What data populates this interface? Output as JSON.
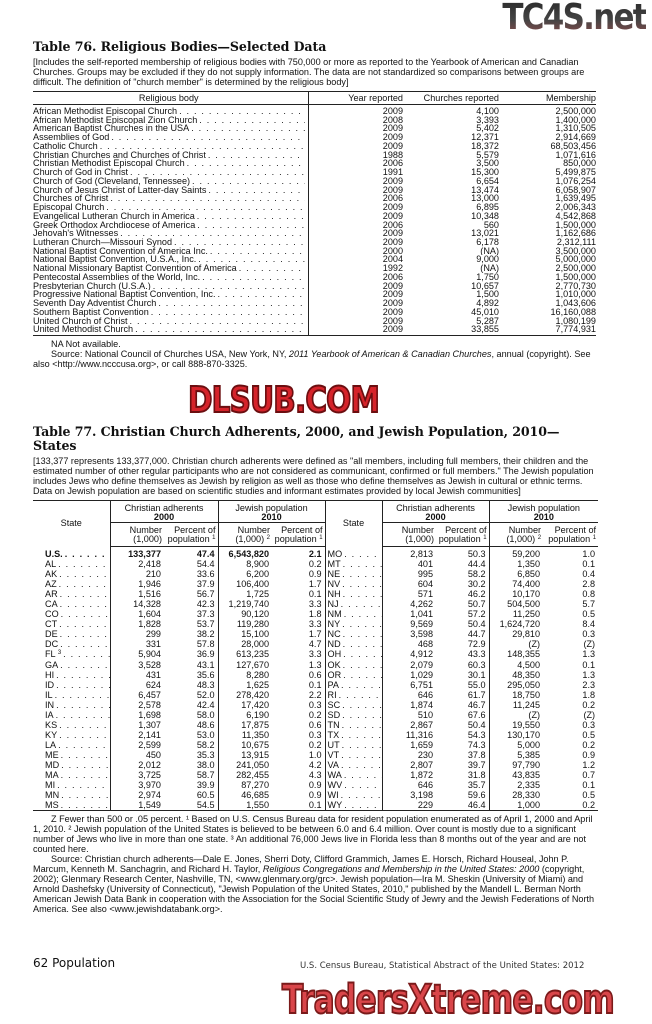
{
  "watermarks": {
    "top": "TC4S.net",
    "middle": "DLSUB.COM",
    "bottom": "TradersXtreme.com"
  },
  "table76": {
    "title": "Table 76. Religious Bodies—Selected Data",
    "note": "[Includes the self-reported membership of religious bodies with 750,000 or more as reported to the Yearbook of American and Canadian Churches. Groups may be excluded if they do not supply information. The data are not standardized so comparisons between groups are difficult. The definition of \"church member\" is determined by the religious body]",
    "headers": {
      "body": "Religious body",
      "year": "Year reported",
      "churches": "Churches reported",
      "membership": "Membership"
    },
    "rows": [
      [
        "African Methodist Episcopal Church",
        "2009",
        "4,100",
        "2,500,000"
      ],
      [
        "African Methodist Episcopal Zion Church",
        "2008",
        "3,393",
        "1,400,000"
      ],
      [
        "American Baptist Churches in the USA",
        "2009",
        "5,402",
        "1,310,505"
      ],
      [
        "Assemblies of God",
        "2009",
        "12,371",
        "2,914,669"
      ],
      [
        "Catholic Church",
        "2009",
        "18,372",
        "68,503,456"
      ],
      [
        "Christian Churches and Churches of Christ",
        "1988",
        "5,579",
        "1,071,616"
      ],
      [
        "Christian Methodist Episcopal Church",
        "2006",
        "3,500",
        "850,000"
      ],
      [
        "Church of God in Christ",
        "1991",
        "15,300",
        "5,499,875"
      ],
      [
        "Church of God (Cleveland, Tennessee)",
        "2009",
        "6,654",
        "1,076,254"
      ],
      [
        "Church of Jesus Christ of Latter-day Saints",
        "2009",
        "13,474",
        "6,058,907"
      ],
      [
        "Churches of Christ",
        "2006",
        "13,000",
        "1,639,495"
      ],
      [
        "Episcopal Church",
        "2009",
        "6,895",
        "2,006,343"
      ],
      [
        "Evangelical Lutheran Church in America",
        "2009",
        "10,348",
        "4,542,868"
      ],
      [
        "Greek Orthodox Archdiocese of America",
        "2006",
        "560",
        "1,500,000"
      ],
      [
        "Jehovah's Witnesses",
        "2009",
        "13,021",
        "1,162,686"
      ],
      [
        "Lutheran Church—Missouri Synod",
        "2009",
        "6,178",
        "2,312,111"
      ],
      [
        "National Baptist Convention of America Inc.",
        "2000",
        "(NA)",
        "3,500,000"
      ],
      [
        "National Baptist Convention, U.S.A., Inc.",
        "2004",
        "9,000",
        "5,000,000"
      ],
      [
        "National Missionary Baptist Convention of America",
        "1992",
        "(NA)",
        "2,500,000"
      ],
      [
        "Pentecostal Assemblies of the World, Inc.",
        "2006",
        "1,750",
        "1,500,000"
      ],
      [
        "Presbyterian Church (U.S.A.)",
        "2009",
        "10,657",
        "2,770,730"
      ],
      [
        "Progressive National Baptist Convention, Inc.",
        "2009",
        "1,500",
        "1,010,000"
      ],
      [
        "Seventh Day Adventist Church",
        "2009",
        "4,892",
        "1,043,606"
      ],
      [
        "Southern Baptist Convention",
        "2009",
        "45,010",
        "16,160,088"
      ],
      [
        "United Church of Christ",
        "2009",
        "5,287",
        "1,080,199"
      ],
      [
        "United Methodist Church",
        "2009",
        "33,855",
        "7,774,931"
      ]
    ],
    "footnote_na": "NA Not available.",
    "source": [
      {
        "t": "Source: National Council of Churches USA, New York, NY, "
      },
      {
        "t": "2011 Yearbook of American & Canadian Churches",
        "i": true
      },
      {
        "t": ", annual (copyright). See also <http://www.ncccusa.org>, or call 888-870-3325."
      }
    ]
  },
  "table77": {
    "title": "Table 77. Christian Church Adherents, 2000, and Jewish Population, 2010—States",
    "note": "[133,377 represents 133,377,000. Christian church adherents were defined as \"all members, including full members, their children and the estimated number of other regular participants who are not considered as communicant, confirmed or full members.\" The Jewish population includes Jews who define themselves as Jewish by religion as well as those who define themselves as Jewish in cultural or ethnic terms. Data on Jewish population are based on scientific studies and informant estimates provided by local Jewish communities]",
    "headers": {
      "state": "State",
      "christian": "Christian adherents",
      "christian_year": "2000",
      "jewish": "Jewish population",
      "jewish_year": "2010",
      "number": "Number",
      "unit": "(1,000)",
      "jewish_unit_sup": "2",
      "percent": "Percent of",
      "population": "population",
      "percent_sup": "1"
    },
    "rows": [
      {
        "l": {
          "s": "U.S.",
          "n1": "133,377",
          "p1": "47.4",
          "n2": "6,543,820",
          "p2": "2.1"
        },
        "r": {
          "s": "MO",
          "n1": "2,813",
          "p1": "50.3",
          "n2": "59,200",
          "p2": "1.0"
        }
      },
      {
        "l": {
          "s": "AL",
          "n1": "2,418",
          "p1": "54.4",
          "n2": "8,900",
          "p2": "0.2"
        },
        "r": {
          "s": "MT",
          "n1": "401",
          "p1": "44.4",
          "n2": "1,350",
          "p2": "0.1"
        }
      },
      {
        "l": {
          "s": "AK",
          "n1": "210",
          "p1": "33.6",
          "n2": "6,200",
          "p2": "0.9"
        },
        "r": {
          "s": "NE",
          "n1": "995",
          "p1": "58.2",
          "n2": "6,850",
          "p2": "0.4"
        }
      },
      {
        "l": {
          "s": "AZ",
          "n1": "1,946",
          "p1": "37.9",
          "n2": "106,400",
          "p2": "1.7"
        },
        "r": {
          "s": "NV",
          "n1": "604",
          "p1": "30.2",
          "n2": "74,400",
          "p2": "2.8"
        }
      },
      {
        "l": {
          "s": "AR",
          "n1": "1,516",
          "p1": "56.7",
          "n2": "1,725",
          "p2": "0.1"
        },
        "r": {
          "s": "NH",
          "n1": "571",
          "p1": "46.2",
          "n2": "10,170",
          "p2": "0.8"
        }
      },
      {
        "l": {
          "s": "CA",
          "n1": "14,328",
          "p1": "42.3",
          "n2": "1,219,740",
          "p2": "3.3"
        },
        "r": {
          "s": "NJ",
          "n1": "4,262",
          "p1": "50.7",
          "n2": "504,500",
          "p2": "5.7"
        }
      },
      {
        "l": {
          "s": "CO",
          "n1": "1,604",
          "p1": "37.3",
          "n2": "90,120",
          "p2": "1.8"
        },
        "r": {
          "s": "NM",
          "n1": "1,041",
          "p1": "57.2",
          "n2": "11,250",
          "p2": "0.5"
        }
      },
      {
        "l": {
          "s": "CT",
          "n1": "1,828",
          "p1": "53.7",
          "n2": "119,280",
          "p2": "3.3"
        },
        "r": {
          "s": "NY",
          "n1": "9,569",
          "p1": "50.4",
          "n2": "1,624,720",
          "p2": "8.4"
        }
      },
      {
        "l": {
          "s": "DE",
          "n1": "299",
          "p1": "38.2",
          "n2": "15,100",
          "p2": "1.7"
        },
        "r": {
          "s": "NC",
          "n1": "3,598",
          "p1": "44.7",
          "n2": "29,810",
          "p2": "0.3"
        }
      },
      {
        "l": {
          "s": "DC",
          "n1": "331",
          "p1": "57.8",
          "n2": "28,000",
          "p2": "4.7"
        },
        "r": {
          "s": "ND",
          "n1": "468",
          "p1": "72.9",
          "n2": "(Z)",
          "p2": "(Z)"
        }
      },
      {
        "l": {
          "s": "FL",
          "sup": "3",
          "n1": "5,904",
          "p1": "36.9",
          "n2": "613,235",
          "p2": "3.3"
        },
        "r": {
          "s": "OH",
          "n1": "4,912",
          "p1": "43.3",
          "n2": "148,355",
          "p2": "1.3"
        }
      },
      {
        "l": {
          "s": "GA",
          "n1": "3,528",
          "p1": "43.1",
          "n2": "127,670",
          "p2": "1.3"
        },
        "r": {
          "s": "OK",
          "n1": "2,079",
          "p1": "60.3",
          "n2": "4,500",
          "p2": "0.1"
        }
      },
      {
        "l": {
          "s": "HI",
          "n1": "431",
          "p1": "35.6",
          "n2": "8,280",
          "p2": "0.6"
        },
        "r": {
          "s": "OR",
          "n1": "1,029",
          "p1": "30.1",
          "n2": "48,350",
          "p2": "1.3"
        }
      },
      {
        "l": {
          "s": "ID",
          "n1": "624",
          "p1": "48.3",
          "n2": "1,625",
          "p2": "0.1"
        },
        "r": {
          "s": "PA",
          "n1": "6,751",
          "p1": "55.0",
          "n2": "295,050",
          "p2": "2.3"
        }
      },
      {
        "l": {
          "s": "IL",
          "n1": "6,457",
          "p1": "52.0",
          "n2": "278,420",
          "p2": "2.2"
        },
        "r": {
          "s": "RI",
          "n1": "646",
          "p1": "61.7",
          "n2": "18,750",
          "p2": "1.8"
        }
      },
      {
        "l": {
          "s": "IN",
          "n1": "2,578",
          "p1": "42.4",
          "n2": "17,420",
          "p2": "0.3"
        },
        "r": {
          "s": "SC",
          "n1": "1,874",
          "p1": "46.7",
          "n2": "11,245",
          "p2": "0.2"
        }
      },
      {
        "l": {
          "s": "IA",
          "n1": "1,698",
          "p1": "58.0",
          "n2": "6,190",
          "p2": "0.2"
        },
        "r": {
          "s": "SD",
          "n1": "510",
          "p1": "67.6",
          "n2": "(Z)",
          "p2": "(Z)"
        }
      },
      {
        "l": {
          "s": "KS",
          "n1": "1,307",
          "p1": "48.6",
          "n2": "17,875",
          "p2": "0.6"
        },
        "r": {
          "s": "TN",
          "n1": "2,867",
          "p1": "50.4",
          "n2": "19,550",
          "p2": "0.3"
        }
      },
      {
        "l": {
          "s": "KY",
          "n1": "2,141",
          "p1": "53.0",
          "n2": "11,350",
          "p2": "0.3"
        },
        "r": {
          "s": "TX",
          "n1": "11,316",
          "p1": "54.3",
          "n2": "130,170",
          "p2": "0.5"
        }
      },
      {
        "l": {
          "s": "LA",
          "n1": "2,599",
          "p1": "58.2",
          "n2": "10,675",
          "p2": "0.2"
        },
        "r": {
          "s": "UT",
          "n1": "1,659",
          "p1": "74.3",
          "n2": "5,000",
          "p2": "0.2"
        }
      },
      {
        "l": {
          "s": "ME",
          "n1": "450",
          "p1": "35.3",
          "n2": "13,915",
          "p2": "1.0"
        },
        "r": {
          "s": "VT",
          "n1": "230",
          "p1": "37.8",
          "n2": "5,385",
          "p2": "0.9"
        }
      },
      {
        "l": {
          "s": "MD",
          "n1": "2,012",
          "p1": "38.0",
          "n2": "241,050",
          "p2": "4.2"
        },
        "r": {
          "s": "VA",
          "n1": "2,807",
          "p1": "39.7",
          "n2": "97,790",
          "p2": "1.2"
        }
      },
      {
        "l": {
          "s": "MA",
          "n1": "3,725",
          "p1": "58.7",
          "n2": "282,455",
          "p2": "4.3"
        },
        "r": {
          "s": "WA",
          "n1": "1,872",
          "p1": "31.8",
          "n2": "43,835",
          "p2": "0.7"
        }
      },
      {
        "l": {
          "s": "MI",
          "n1": "3,970",
          "p1": "39.9",
          "n2": "87,270",
          "p2": "0.9"
        },
        "r": {
          "s": "WV",
          "n1": "646",
          "p1": "35.7",
          "n2": "2,335",
          "p2": "0.1"
        }
      },
      {
        "l": {
          "s": "MN",
          "n1": "2,974",
          "p1": "60.5",
          "n2": "46,685",
          "p2": "0.9"
        },
        "r": {
          "s": "WI",
          "n1": "3,198",
          "p1": "59.6",
          "n2": "28,330",
          "p2": "0.5"
        }
      },
      {
        "l": {
          "s": "MS",
          "n1": "1,549",
          "p1": "54.5",
          "n2": "1,550",
          "p2": "0.1"
        },
        "r": {
          "s": "WY",
          "n1": "229",
          "p1": "46.4",
          "n2": "1,000",
          "p2": "0.2"
        }
      }
    ],
    "footnotes": "Z Fewer than 500 or .05 percent. ¹ Based on U.S. Census Bureau data for resident population enumerated as of April 1, 2000 and April 1, 2010. ² Jewish population of the United States is believed to be between 6.0 and 6.4 million. Over count is mostly due to a significant number of Jews who live in more than one state. ³ An additional 76,000 Jews live in Florida less than 8 months out of the year and are not counted here.",
    "source": [
      {
        "t": "Source: Christian church adherents—Dale E. Jones, Sherri Doty, Clifford Grammich, James E. Horsch, Richard Houseal, John P. Marcum, Kenneth M. Sanchagrin, and Richard H. Taylor, "
      },
      {
        "t": "Religious Congregations and Membership in the United States: 2000",
        "i": true
      },
      {
        "t": " (copyright, 2002); Glenmary Research Center, Nashville, TN, <www.glenmary.org/grc>. Jewish population—Ira M. Sheskin (University of Miami) and Arnold Dashefsky (University of Connecticut), \"Jewish Population of the United States, 2010,\" published by the Mandell L. Berman North American Jewish Data Bank in cooperation with the Association for the Social Scientific Study of Jewry and the Jewish Federations of North America. See also <www.jewishdatabank.org>."
      }
    ]
  },
  "footer": {
    "page": "62  Population",
    "publication": "U.S. Census Bureau, Statistical Abstract of the United States: 2012"
  }
}
